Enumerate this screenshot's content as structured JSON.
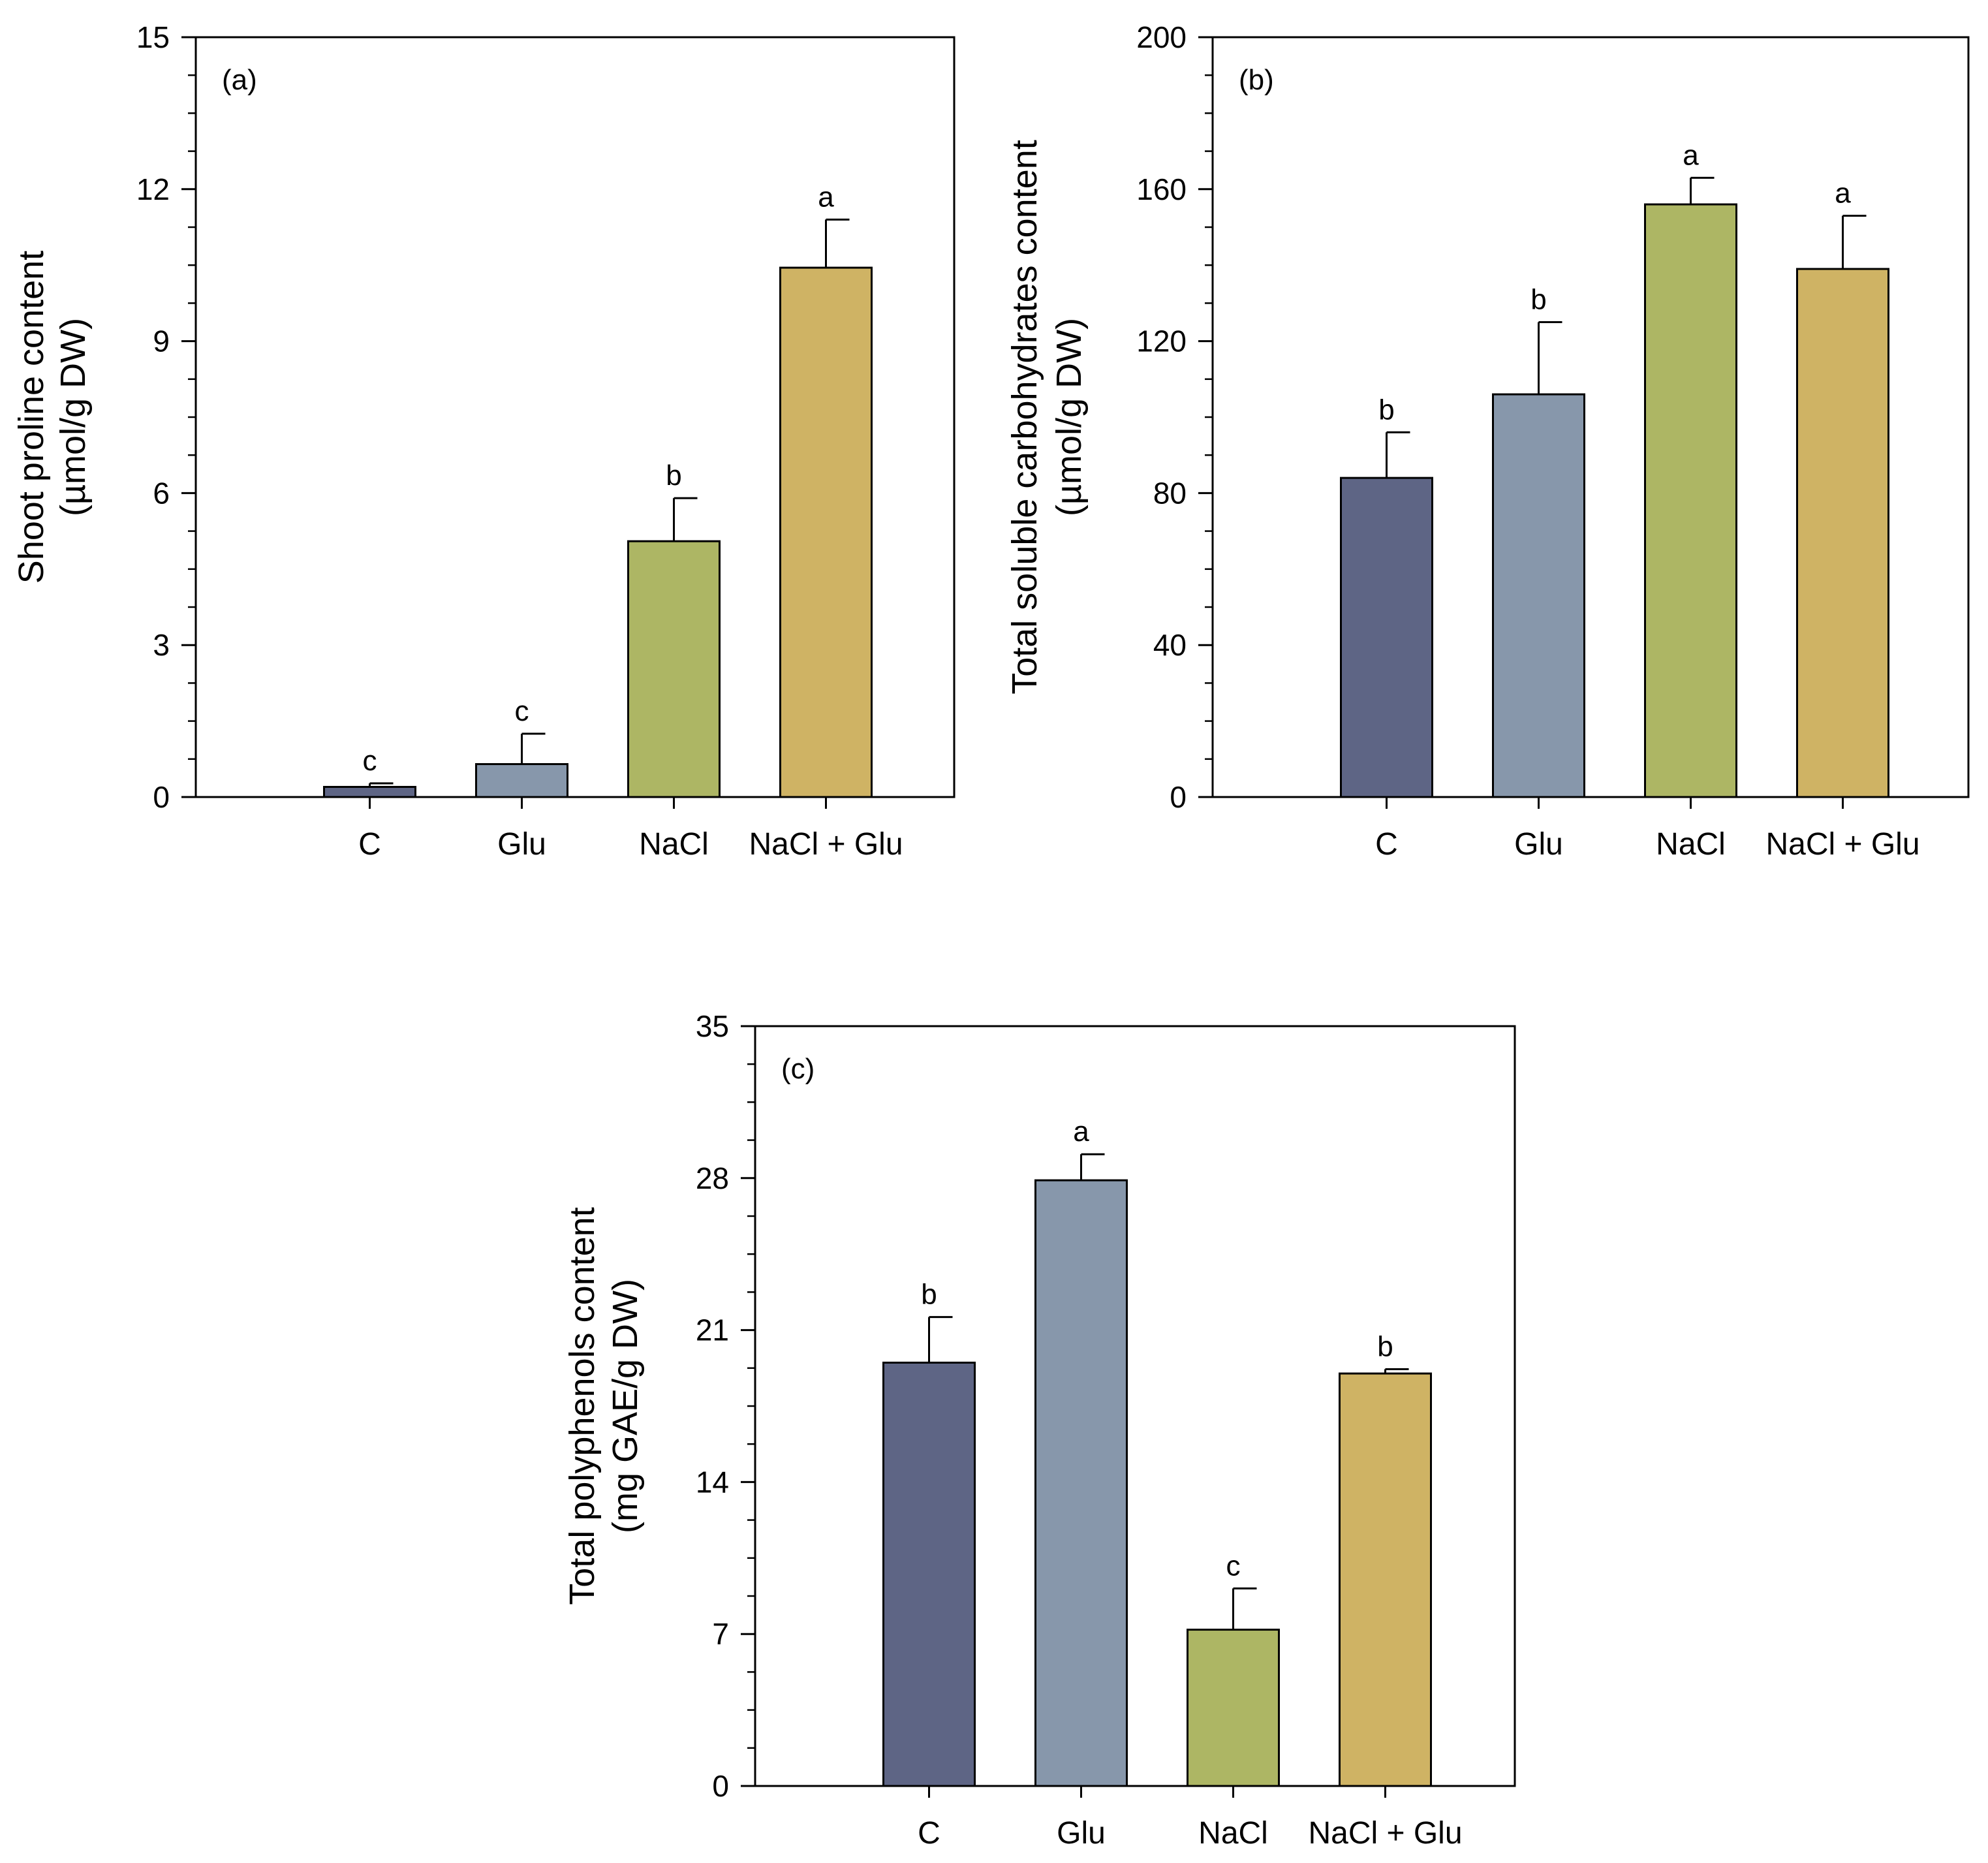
{
  "chart_data": [
    {
      "type": "bar",
      "panel_label": "(a)",
      "ylabel_lines": [
        "Shoot proline content",
        "(µmol/g DW)"
      ],
      "categories": [
        "C",
        "Glu",
        "NaCl",
        "NaCl + Glu"
      ],
      "values": [
        0.2,
        0.65,
        5.05,
        10.45
      ],
      "errors": [
        0.07,
        0.6,
        0.85,
        0.95
      ],
      "significance": [
        "c",
        "c",
        "b",
        "a"
      ],
      "ylim": [
        0,
        15
      ],
      "yticks": [
        0,
        3,
        6,
        9,
        12,
        15
      ],
      "colors": [
        "#5e6585",
        "#8797ab",
        "#adb664",
        "#cfb364"
      ],
      "grid": false
    },
    {
      "type": "bar",
      "panel_label": "(b)",
      "ylabel_lines": [
        "Total soluble carbohydrates content",
        "(µmol/g DW)"
      ],
      "categories": [
        "C",
        "Glu",
        "NaCl",
        "NaCl + Glu"
      ],
      "values": [
        84,
        106,
        156,
        139
      ],
      "errors": [
        12,
        19,
        7,
        14
      ],
      "significance": [
        "b",
        "b",
        "a",
        "a"
      ],
      "ylim": [
        0,
        200
      ],
      "yticks": [
        0,
        40,
        80,
        120,
        160,
        200
      ],
      "colors": [
        "#5e6585",
        "#8797ab",
        "#adb664",
        "#cfb364"
      ],
      "grid": false
    },
    {
      "type": "bar",
      "panel_label": "(c)",
      "ylabel_lines": [
        "Total polyphenols content",
        "(mg GAE/g DW)"
      ],
      "categories": [
        "C",
        "Glu",
        "NaCl",
        "NaCl + Glu"
      ],
      "values": [
        19.5,
        27.9,
        7.2,
        19
      ],
      "errors": [
        2.1,
        1.2,
        1.9,
        0.2
      ],
      "significance": [
        "b",
        "a",
        "c",
        "b"
      ],
      "ylim": [
        0,
        35
      ],
      "yticks": [
        0,
        7,
        14,
        21,
        28,
        35
      ],
      "colors": [
        "#5e6585",
        "#8797ab",
        "#adb664",
        "#cfb364"
      ],
      "grid": false
    }
  ]
}
